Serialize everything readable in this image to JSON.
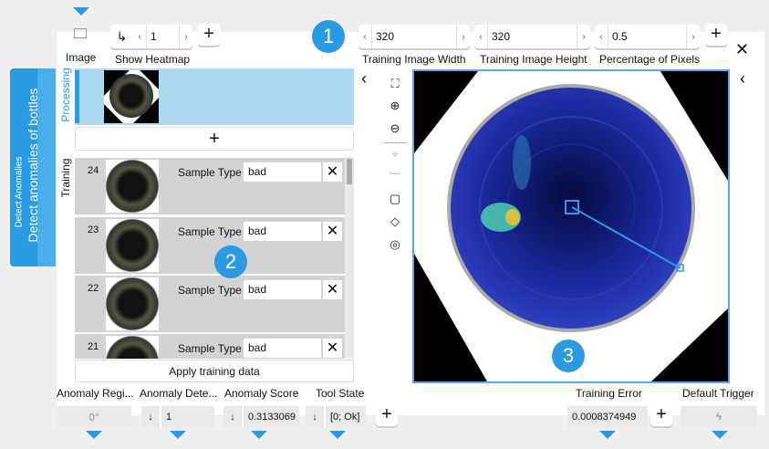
{
  "side_tab": {
    "title": "Detect Anomalies",
    "subtitle": "Detect anomalies of bottles"
  },
  "inputs": {
    "image": {
      "label": "Image",
      "icon": "image-icon"
    },
    "show_heatmap": {
      "label": "Show Heatmap",
      "value": "1"
    },
    "training_image_width": {
      "label": "Training Image Width",
      "value": "320"
    },
    "training_image_height": {
      "label": "Training Image Height",
      "value": "320"
    },
    "percentage_of_pixels": {
      "label": "Percentage of Pixels",
      "value": "0.5"
    }
  },
  "processing": {
    "label": "Processing"
  },
  "training": {
    "label": "Training",
    "apply_label": "Apply training data",
    "items": [
      {
        "index": "24",
        "field_label": "Sample Type",
        "value": "bad"
      },
      {
        "index": "23",
        "field_label": "Sample Type",
        "value": "bad"
      },
      {
        "index": "22",
        "field_label": "Sample Type",
        "value": "bad"
      },
      {
        "index": "21",
        "field_label": "Sample Type",
        "value": "bad"
      }
    ]
  },
  "badges": [
    "1",
    "2",
    "3"
  ],
  "outputs": [
    {
      "label": "Anomaly Regi...",
      "value": ""
    },
    {
      "label": "Anomaly Dete...",
      "value": "1"
    },
    {
      "label": "Anomaly Score",
      "value": "0.3133069"
    },
    {
      "label": "Tool State",
      "value": "[0; Ok]"
    },
    {
      "label": "Training Error",
      "value": "0.0008374949"
    },
    {
      "label": "Default Trigger",
      "value": ""
    }
  ],
  "colors": {
    "accent": "#2a9be3",
    "processing_bg": "#aed8f2",
    "row_bg": "#d3d3d3"
  }
}
